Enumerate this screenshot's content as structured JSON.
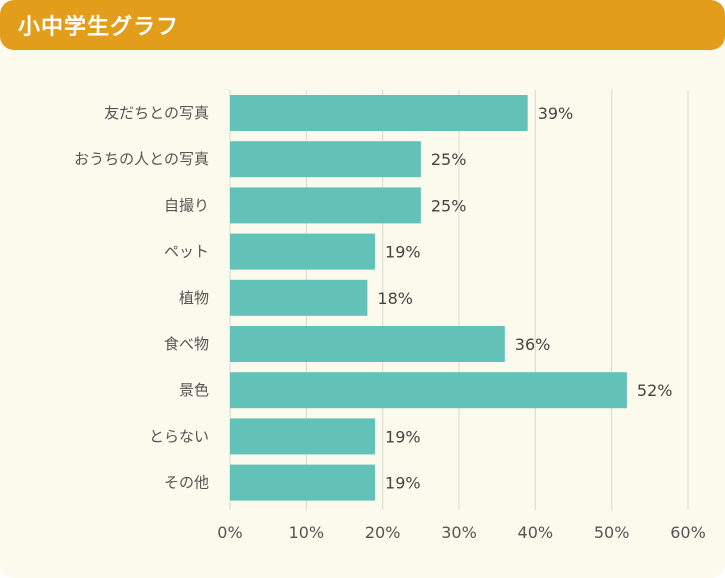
{
  "header": {
    "title": "小中学生グラフ"
  },
  "colors": {
    "header": "#e29e1a",
    "bar": "#62c2b8",
    "grid": "#d9d9cf",
    "background": "#fcfaec"
  },
  "chart_data": {
    "type": "bar",
    "orientation": "horizontal",
    "categories": [
      "友だちとの写真",
      "おうちの人との写真",
      "自撮り",
      "ペット",
      "植物",
      "食べ物",
      "景色",
      "とらない",
      "その他"
    ],
    "values": [
      39,
      25,
      25,
      19,
      18,
      36,
      52,
      19,
      19
    ],
    "value_labels": [
      "39%",
      "25%",
      "25%",
      "19%",
      "18%",
      "36%",
      "52%",
      "19%",
      "19%"
    ],
    "xlim": [
      0,
      60
    ],
    "x_ticks": [
      0,
      10,
      20,
      30,
      40,
      50,
      60
    ],
    "x_tick_labels": [
      "0%",
      "10%",
      "20%",
      "30%",
      "40%",
      "50%",
      "60%"
    ],
    "grid": true
  }
}
